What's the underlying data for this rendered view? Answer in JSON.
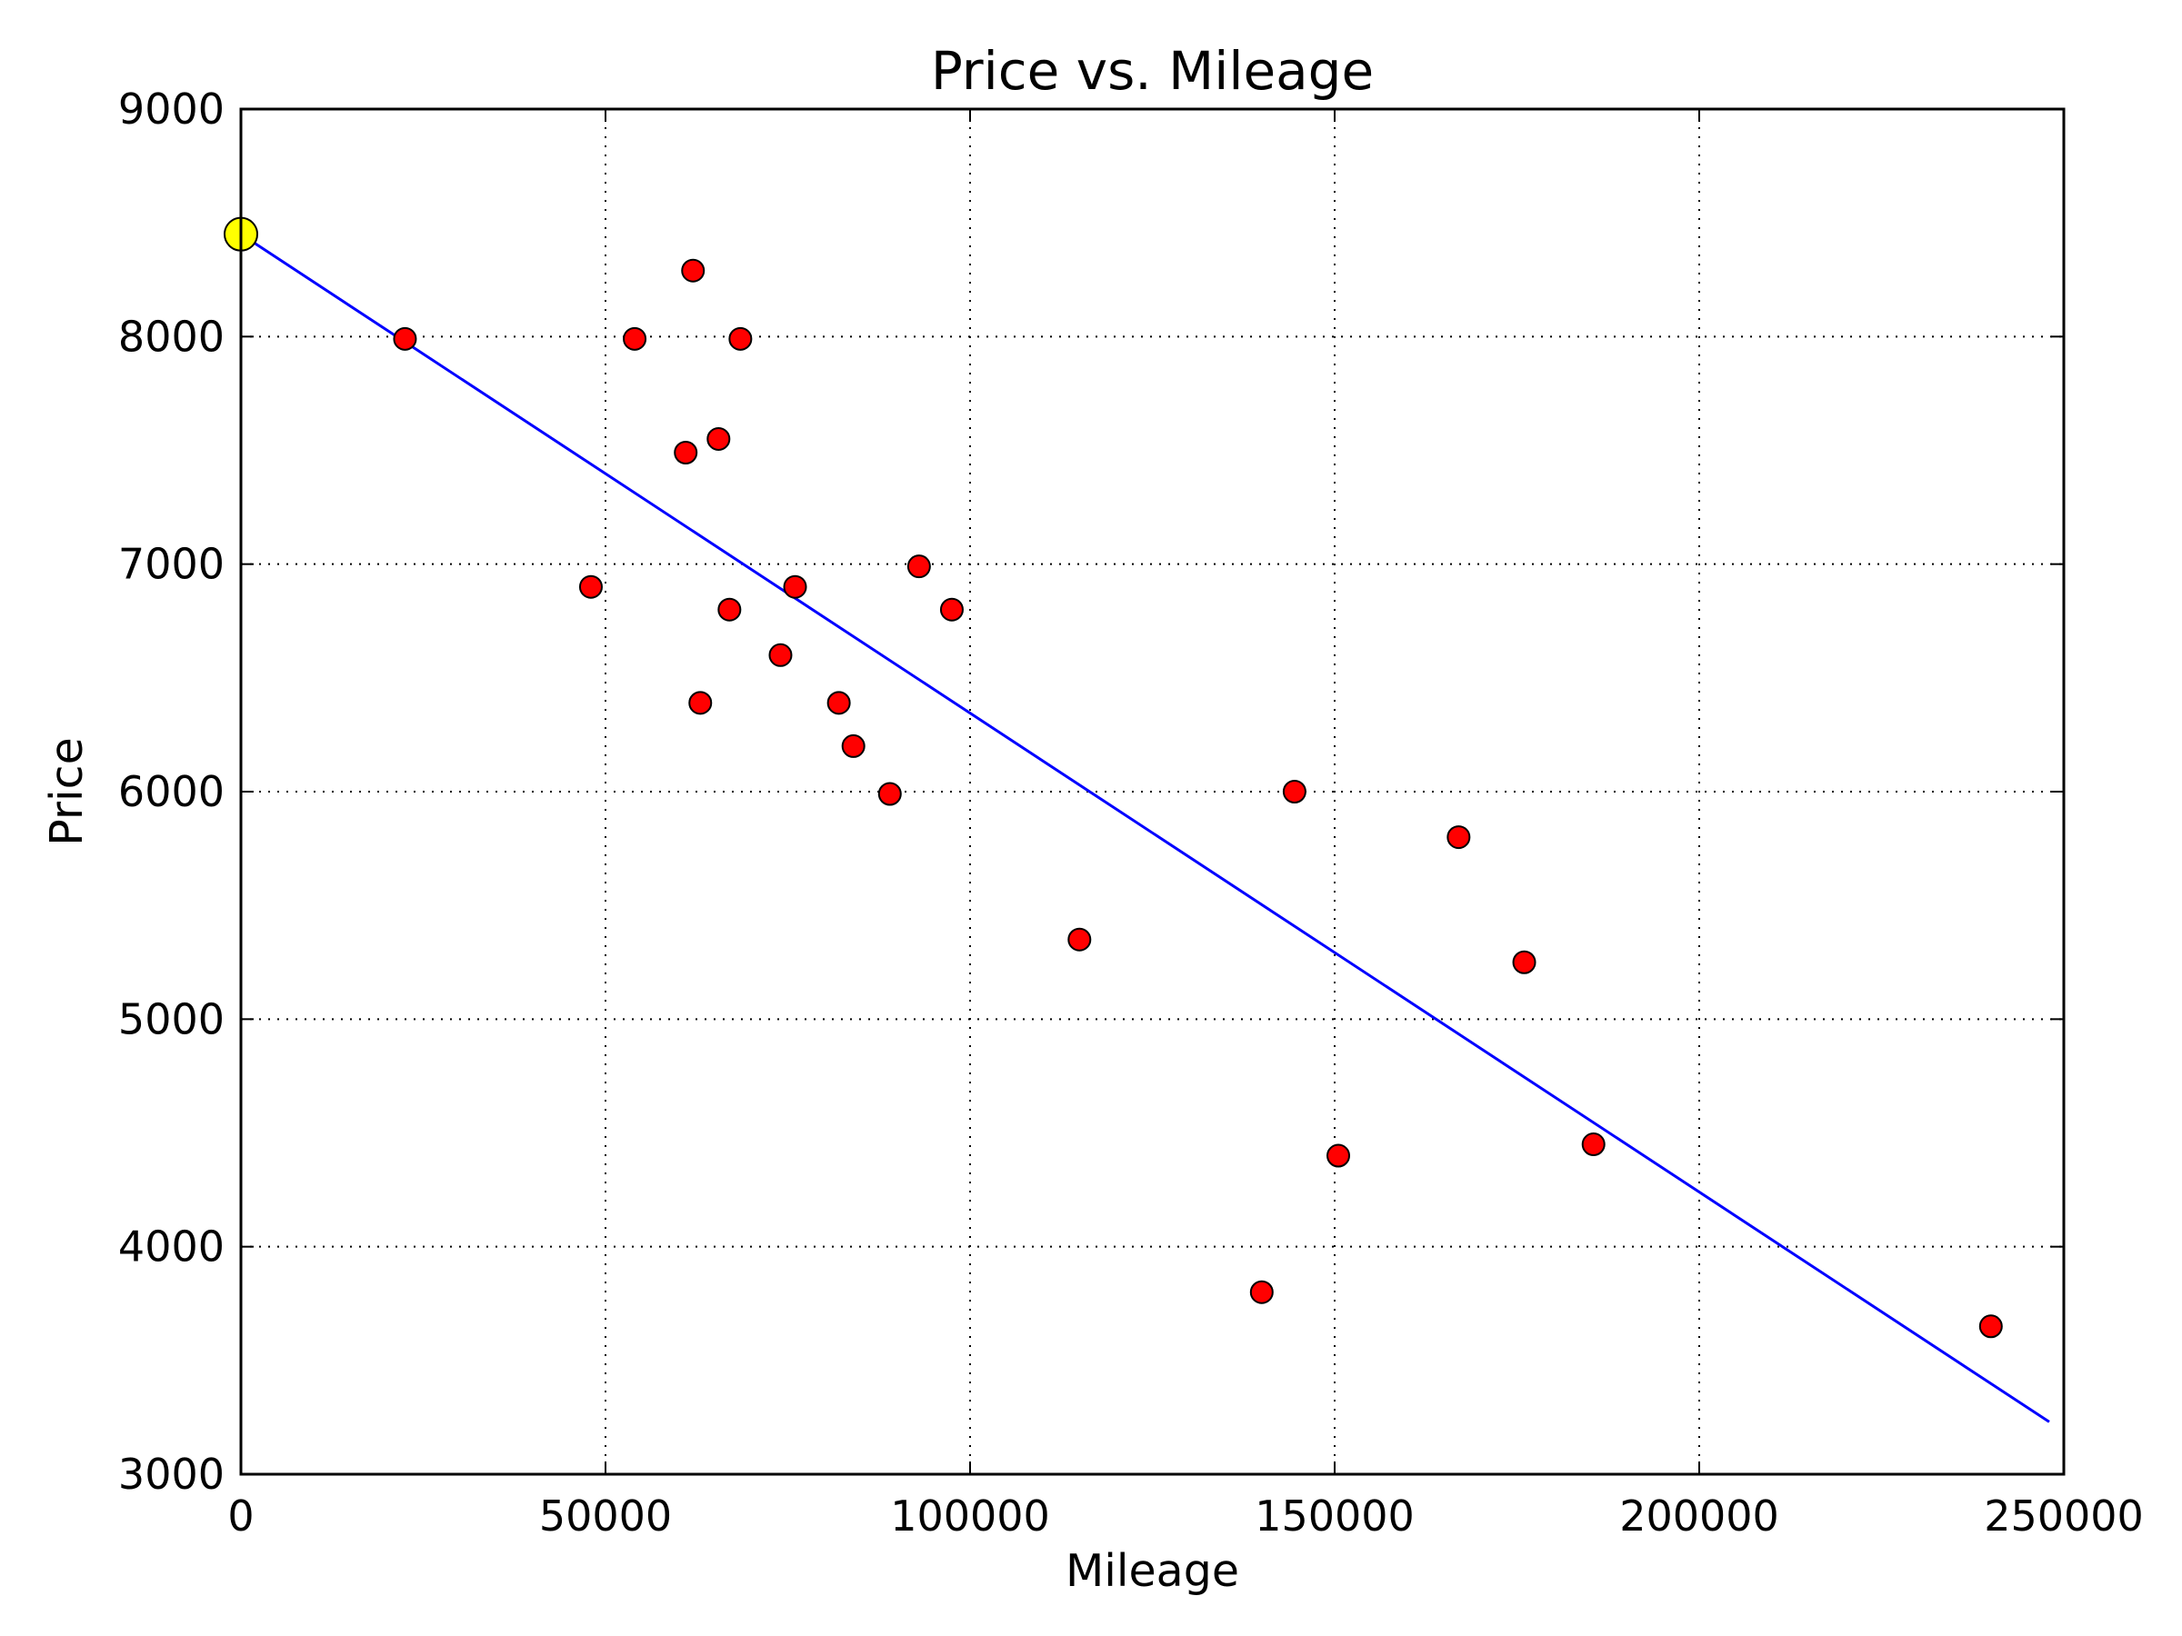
{
  "chart_data": {
    "type": "scatter",
    "title": "Price vs. Mileage",
    "xlabel": "Mileage",
    "ylabel": "Price",
    "xlim": [
      0,
      250000
    ],
    "ylim": [
      3000,
      9000
    ],
    "x_ticks": [
      0,
      50000,
      100000,
      150000,
      200000,
      250000
    ],
    "y_ticks": [
      3000,
      4000,
      5000,
      6000,
      7000,
      8000,
      9000
    ],
    "x_tick_labels": [
      "0",
      "50000",
      "100000",
      "150000",
      "200000",
      "250000"
    ],
    "y_tick_labels": [
      "3000",
      "4000",
      "5000",
      "6000",
      "7000",
      "8000",
      "9000"
    ],
    "grid": true,
    "grid_style": "dotted",
    "series": [
      {
        "type": "scatter",
        "color": "#ff0000",
        "points": [
          {
            "x": 22500,
            "y": 7990
          },
          {
            "x": 48000,
            "y": 6900
          },
          {
            "x": 54000,
            "y": 7990
          },
          {
            "x": 61000,
            "y": 7490
          },
          {
            "x": 62000,
            "y": 8290
          },
          {
            "x": 63000,
            "y": 6390
          },
          {
            "x": 65500,
            "y": 7550
          },
          {
            "x": 67000,
            "y": 6800
          },
          {
            "x": 68500,
            "y": 7990
          },
          {
            "x": 74000,
            "y": 6600
          },
          {
            "x": 76000,
            "y": 6900
          },
          {
            "x": 82000,
            "y": 6390
          },
          {
            "x": 84000,
            "y": 6200
          },
          {
            "x": 89000,
            "y": 5990
          },
          {
            "x": 93000,
            "y": 6990
          },
          {
            "x": 97500,
            "y": 6800
          },
          {
            "x": 115000,
            "y": 5350
          },
          {
            "x": 140000,
            "y": 3800
          },
          {
            "x": 144500,
            "y": 6000
          },
          {
            "x": 150500,
            "y": 4400
          },
          {
            "x": 167000,
            "y": 5800
          },
          {
            "x": 176000,
            "y": 5250
          },
          {
            "x": 185500,
            "y": 4450
          },
          {
            "x": 240000,
            "y": 3650
          }
        ]
      },
      {
        "type": "scatter",
        "color": "#ffff00",
        "points": [
          {
            "x": 0,
            "y": 8450
          }
        ]
      },
      {
        "type": "line",
        "color": "#0000ff",
        "points": [
          {
            "x": 0,
            "y": 8450
          },
          {
            "x": 248000,
            "y": 3230
          }
        ]
      }
    ]
  }
}
